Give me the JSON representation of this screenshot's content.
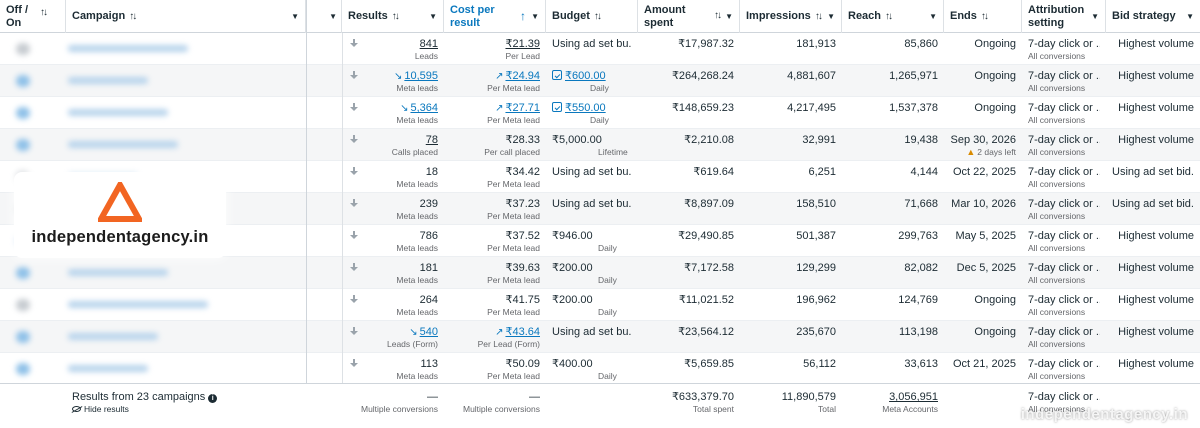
{
  "header": {
    "off_on": "Off / On",
    "campaign": "Campaign",
    "results": "Results",
    "cost_per_result": "Cost per result",
    "budget": "Budget",
    "amount_spent": "Amount spent",
    "impressions": "Impressions",
    "reach": "Reach",
    "ends": "Ends",
    "attribution_setting": "Attribution setting",
    "bid_strategy": "Bid strategy"
  },
  "rows": [
    {
      "toggle": "off",
      "results": "841",
      "results_sub": "Leads",
      "results_trend": "",
      "cost": "₹21.39",
      "cost_sub": "Per Lead",
      "cost_trend": "",
      "budget": "Using ad set bu...",
      "budget_sub": "",
      "budget_edit": false,
      "spent": "₹17,987.32",
      "impressions": "181,913",
      "reach": "85,860",
      "ends": "Ongoing",
      "ends_sub": "",
      "attribution": "7-day click or ...",
      "attribution_sub": "All conversions",
      "bid": "Highest volume"
    },
    {
      "toggle": "on",
      "results": "10,595",
      "results_sub": "Meta leads",
      "results_trend": "down",
      "cost": "₹24.94",
      "cost_sub": "Per Meta lead",
      "cost_trend": "up",
      "budget": "₹600.00",
      "budget_sub": "Daily",
      "budget_edit": true,
      "spent": "₹264,268.24",
      "impressions": "4,881,607",
      "reach": "1,265,971",
      "ends": "Ongoing",
      "ends_sub": "",
      "attribution": "7-day click or ...",
      "attribution_sub": "All conversions",
      "bid": "Highest volume"
    },
    {
      "toggle": "on",
      "results": "5,364",
      "results_sub": "Meta leads",
      "results_trend": "down",
      "cost": "₹27.71",
      "cost_sub": "Per Meta lead",
      "cost_trend": "up",
      "budget": "₹550.00",
      "budget_sub": "Daily",
      "budget_edit": true,
      "spent": "₹148,659.23",
      "impressions": "4,217,495",
      "reach": "1,537,378",
      "ends": "Ongoing",
      "ends_sub": "",
      "attribution": "7-day click or ...",
      "attribution_sub": "All conversions",
      "bid": "Highest volume"
    },
    {
      "toggle": "on",
      "results": "78",
      "results_sub": "Calls placed",
      "results_trend": "",
      "cost": "₹28.33",
      "cost_sub": "Per call placed",
      "cost_trend": "",
      "budget": "₹5,000.00",
      "budget_sub": "Lifetime",
      "budget_edit": false,
      "spent": "₹2,210.08",
      "impressions": "32,991",
      "reach": "19,438",
      "ends": "Sep 30, 2026",
      "ends_sub": "2 days left",
      "attribution": "7-day click or ...",
      "attribution_sub": "All conversions",
      "bid": "Highest volume"
    },
    {
      "toggle": "off",
      "results": "18",
      "results_sub": "Meta leads",
      "results_trend": "",
      "cost": "₹34.42",
      "cost_sub": "Per Meta lead",
      "cost_trend": "",
      "budget": "Using ad set bu...",
      "budget_sub": "",
      "budget_edit": false,
      "spent": "₹619.64",
      "impressions": "6,251",
      "reach": "4,144",
      "ends": "Oct 22, 2025",
      "ends_sub": "",
      "attribution": "7-day click or ...",
      "attribution_sub": "All conversions",
      "bid": "Using ad set bid..."
    },
    {
      "toggle": "off",
      "results": "239",
      "results_sub": "Meta leads",
      "results_trend": "",
      "cost": "₹37.23",
      "cost_sub": "Per Meta lead",
      "cost_trend": "",
      "budget": "Using ad set bu...",
      "budget_sub": "",
      "budget_edit": false,
      "spent": "₹8,897.09",
      "impressions": "158,510",
      "reach": "71,668",
      "ends": "Mar 10, 2026",
      "ends_sub": "",
      "attribution": "7-day click or ...",
      "attribution_sub": "All conversions",
      "bid": "Using ad set bid..."
    },
    {
      "toggle": "on",
      "results": "786",
      "results_sub": "Meta leads",
      "results_trend": "",
      "cost": "₹37.52",
      "cost_sub": "Per Meta lead",
      "cost_trend": "",
      "budget": "₹946.00",
      "budget_sub": "Daily",
      "budget_edit": false,
      "spent": "₹29,490.85",
      "impressions": "501,387",
      "reach": "299,763",
      "ends": "May 5, 2025",
      "ends_sub": "",
      "attribution": "7-day click or ...",
      "attribution_sub": "All conversions",
      "bid": "Highest volume"
    },
    {
      "toggle": "on",
      "results": "181",
      "results_sub": "Meta leads",
      "results_trend": "",
      "cost": "₹39.63",
      "cost_sub": "Per Meta lead",
      "cost_trend": "",
      "budget": "₹200.00",
      "budget_sub": "Daily",
      "budget_edit": false,
      "spent": "₹7,172.58",
      "impressions": "129,299",
      "reach": "82,082",
      "ends": "Dec 5, 2025",
      "ends_sub": "",
      "attribution": "7-day click or ...",
      "attribution_sub": "All conversions",
      "bid": "Highest volume"
    },
    {
      "toggle": "off",
      "results": "264",
      "results_sub": "Meta leads",
      "results_trend": "",
      "cost": "₹41.75",
      "cost_sub": "Per Meta lead",
      "cost_trend": "",
      "budget": "₹200.00",
      "budget_sub": "Daily",
      "budget_edit": false,
      "spent": "₹11,021.52",
      "impressions": "196,962",
      "reach": "124,769",
      "ends": "Ongoing",
      "ends_sub": "",
      "attribution": "7-day click or ...",
      "attribution_sub": "All conversions",
      "bid": "Highest volume"
    },
    {
      "toggle": "on",
      "results": "540",
      "results_sub": "Leads (Form)",
      "results_trend": "down",
      "cost": "₹43.64",
      "cost_sub": "Per Lead (Form)",
      "cost_trend": "up",
      "budget": "Using ad set bu...",
      "budget_sub": "",
      "budget_edit": false,
      "spent": "₹23,564.12",
      "impressions": "235,670",
      "reach": "113,198",
      "ends": "Ongoing",
      "ends_sub": "",
      "attribution": "7-day click or ...",
      "attribution_sub": "All conversions",
      "bid": "Highest volume"
    },
    {
      "toggle": "on",
      "results": "113",
      "results_sub": "Meta leads",
      "results_trend": "",
      "cost": "₹50.09",
      "cost_sub": "Per Meta lead",
      "cost_trend": "",
      "budget": "₹400.00",
      "budget_sub": "Daily",
      "budget_edit": false,
      "spent": "₹5,659.85",
      "impressions": "56,112",
      "reach": "33,613",
      "ends": "Oct 21, 2025",
      "ends_sub": "",
      "attribution": "7-day click or ...",
      "attribution_sub": "All conversions",
      "bid": "Highest volume"
    }
  ],
  "footer": {
    "campaign_count": "Results from 23 campaigns",
    "hide_results": "Hide results",
    "results": "—",
    "results_sub": "Multiple conversions",
    "cost": "—",
    "cost_sub": "Multiple conversions",
    "spent": "₹633,379.70",
    "spent_sub": "Total spent",
    "impressions": "11,890,579",
    "impressions_sub": "Total",
    "reach": "3,056,951",
    "reach_sub": "Meta Accounts",
    "attribution": "7-day click or ...",
    "attribution_sub": "All conversions"
  },
  "branding": {
    "logo_text": "independentagency.in",
    "watermark": "independentagency.in",
    "logo_color": "#f26522"
  },
  "colors": {
    "accent": "#0a78be",
    "warning": "#d98b00"
  }
}
